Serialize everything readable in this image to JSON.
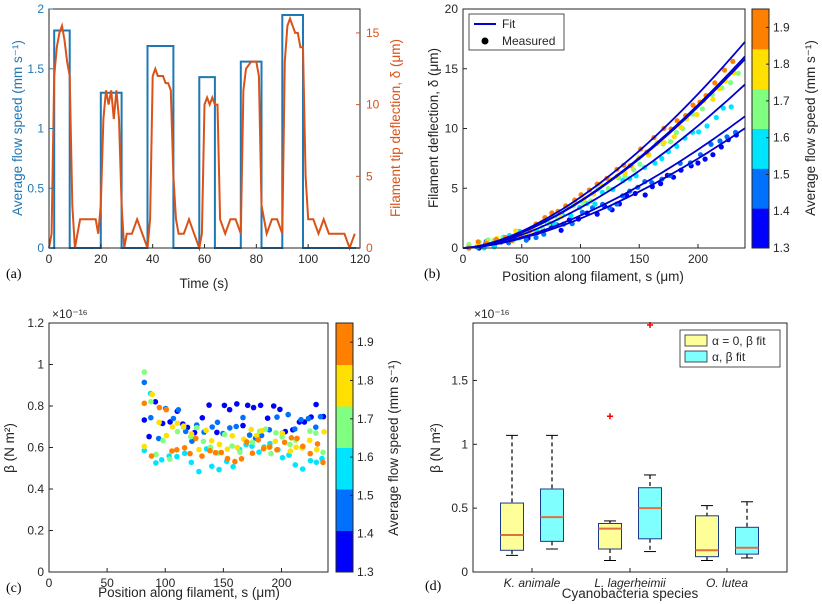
{
  "chart_data": [
    {
      "panel": "(a)",
      "type": "line",
      "xlabel": "Time (s)",
      "ylabel": "Average flow speed (mm s⁻¹)",
      "ylabel_right": "Filament tip deflection, δ (μm)",
      "xlim": [
        0,
        120
      ],
      "ylim": [
        0,
        2
      ],
      "ylim_right": [
        0,
        16.67
      ],
      "x_ticks": [
        "0",
        "20",
        "40",
        "60",
        "80",
        "100",
        "120"
      ],
      "y_ticks": [
        "0",
        "0.5",
        "1",
        "1.5",
        "2"
      ],
      "y_ticks_right": [
        "0",
        "5",
        "10",
        "15"
      ],
      "colors": {
        "flow": "#1f77b4",
        "deflection": "#d95319"
      },
      "series": [
        {
          "name": "flow speed",
          "axis": "left",
          "x": [
            0,
            2,
            2,
            8,
            8,
            20,
            20,
            28,
            28,
            38,
            38,
            48,
            48,
            58,
            58,
            64,
            64,
            74,
            74,
            82,
            82,
            90,
            90,
            98,
            98,
            120
          ],
          "y": [
            0,
            0,
            1.82,
            1.82,
            0,
            0,
            1.3,
            1.3,
            0,
            0,
            1.69,
            1.69,
            0,
            0,
            1.43,
            1.43,
            0,
            0,
            1.56,
            1.56,
            0,
            0,
            1.95,
            1.95,
            0,
            0
          ]
        },
        {
          "name": "tip deflection",
          "axis": "right",
          "x": [
            0,
            1,
            2,
            3,
            4,
            5,
            6,
            7,
            8,
            9,
            10,
            12,
            14,
            16,
            18,
            19,
            20,
            21,
            22,
            23,
            24,
            25,
            26,
            27,
            28,
            29,
            30,
            32,
            34,
            36,
            38,
            39,
            40,
            41,
            42,
            43,
            44,
            45,
            46,
            47,
            48,
            49,
            50,
            52,
            54,
            56,
            58,
            59,
            60,
            61,
            62,
            63,
            64,
            65,
            66,
            68,
            70,
            72,
            74,
            75,
            76,
            78,
            80,
            81,
            82,
            84,
            86,
            88,
            90,
            91,
            92,
            93,
            94,
            95,
            96,
            97,
            98,
            99,
            100,
            102,
            104,
            106,
            108,
            110,
            112,
            114,
            116,
            118
          ],
          "y": [
            0,
            1,
            12,
            14,
            15,
            15.5,
            14.5,
            13,
            12,
            3,
            0,
            2,
            2,
            2,
            2,
            1,
            3,
            9,
            11,
            10,
            11,
            9,
            11,
            9,
            3,
            0,
            1,
            1,
            2,
            1,
            0,
            2,
            12,
            12.5,
            12,
            12,
            12,
            11.5,
            11.5,
            11,
            5,
            2,
            1,
            1,
            2,
            1,
            0,
            1,
            10,
            10.5,
            10,
            10.5,
            10,
            10,
            2,
            1,
            2,
            2,
            1,
            11,
            12.5,
            13,
            13,
            12,
            3,
            1,
            2,
            2,
            1,
            13,
            15.5,
            16,
            15.5,
            15,
            15,
            14,
            14,
            5,
            2,
            2,
            1,
            2,
            1,
            1,
            1,
            1,
            0,
            1
          ]
        }
      ]
    },
    {
      "panel": "(b)",
      "type": "scatter",
      "xlabel": "Position along filament,  s (μm)",
      "ylabel": "Filament deflection, δ (μm)",
      "xlim": [
        0,
        240
      ],
      "ylim": [
        0,
        20
      ],
      "x_ticks": [
        "0",
        "50",
        "100",
        "150",
        "200"
      ],
      "y_ticks": [
        "0",
        "5",
        "10",
        "15",
        "20"
      ],
      "legend": [
        "Fit",
        "Measured"
      ],
      "legend_position": "top-left",
      "colorbar": {
        "label": "Average flow speed (mm s⁻¹)",
        "min": 1.3,
        "max": 1.95,
        "ticks": [
          "1.3",
          "1.4",
          "1.5",
          "1.6",
          "1.7",
          "1.8",
          "1.9"
        ]
      },
      "series": [
        {
          "speed": 1.3,
          "color": "#0000ff",
          "tip": 9.0
        },
        {
          "speed": 1.43,
          "color": "#0070ff",
          "tip": 9.9
        },
        {
          "speed": 1.56,
          "color": "#00e5ff",
          "tip": 12.3
        },
        {
          "speed": 1.69,
          "color": "#80ff80",
          "tip": 14.2
        },
        {
          "speed": 1.82,
          "color": "#ffe000",
          "tip": 14.4
        },
        {
          "speed": 1.95,
          "color": "#ff8000",
          "tip": 15.5
        }
      ]
    },
    {
      "panel": "(c)",
      "type": "scatter",
      "xlabel": "Position along filament,  s (μm)",
      "ylabel": "β (N m²)",
      "exponent": "×10⁻¹⁶",
      "xlim": [
        0,
        240
      ],
      "ylim": [
        0,
        1.2
      ],
      "x_ticks": [
        "0",
        "50",
        "100",
        "150",
        "200"
      ],
      "y_ticks": [
        "0",
        "0.2",
        "0.4",
        "0.6",
        "0.8",
        "1",
        "1.2"
      ],
      "colorbar": {
        "label": "Average flow speed (mm s⁻¹)",
        "min": 1.3,
        "max": 1.95,
        "ticks": [
          "1.3",
          "1.4",
          "1.5",
          "1.6",
          "1.7",
          "1.8",
          "1.9"
        ]
      },
      "series": [
        {
          "speed": 1.3,
          "color": "#0000ff",
          "level": 0.74
        },
        {
          "speed": 1.43,
          "color": "#0070ff",
          "level": 0.7
        },
        {
          "speed": 1.56,
          "color": "#00e5ff",
          "level": 0.55
        },
        {
          "speed": 1.69,
          "color": "#80ff80",
          "level": 0.63
        },
        {
          "speed": 1.82,
          "color": "#ffe000",
          "level": 0.65
        },
        {
          "speed": 1.95,
          "color": "#ff8000",
          "level": 0.59
        }
      ]
    },
    {
      "panel": "(d)",
      "type": "box",
      "xlabel": "Cyanobacteria species",
      "ylabel": "β (N m²)",
      "exponent": "×10⁻¹⁶",
      "ylim": [
        0,
        1.95
      ],
      "y_ticks": [
        "0",
        "0.5",
        "1",
        "1.5"
      ],
      "categories": [
        "K. animale",
        "L. lagerheimii",
        "O. lutea"
      ],
      "legend": [
        "α = 0, β fit",
        "α, β fit"
      ],
      "legend_position": "top-right",
      "colors": {
        "alpha0": "#ffff99",
        "alphafit": "#80ffff",
        "median": "#e07040",
        "outlier": "#ff0000"
      },
      "series": [
        {
          "name": "α = 0, β fit",
          "boxes": [
            {
              "min": 0.13,
              "q1": 0.17,
              "median": 0.29,
              "q3": 0.54,
              "max": 1.07,
              "outliers": []
            },
            {
              "min": 0.09,
              "q1": 0.18,
              "median": 0.34,
              "q3": 0.38,
              "max": 0.4,
              "outliers": [
                1.22
              ]
            },
            {
              "min": 0.09,
              "q1": 0.12,
              "median": 0.17,
              "q3": 0.44,
              "max": 0.52,
              "outliers": []
            }
          ]
        },
        {
          "name": "α, β fit",
          "boxes": [
            {
              "min": 0.18,
              "q1": 0.24,
              "median": 0.43,
              "q3": 0.65,
              "max": 1.07,
              "outliers": []
            },
            {
              "min": 0.16,
              "q1": 0.26,
              "median": 0.5,
              "q3": 0.66,
              "max": 0.76,
              "outliers": [
                1.95
              ]
            },
            {
              "min": 0.11,
              "q1": 0.14,
              "median": 0.19,
              "q3": 0.35,
              "max": 0.55,
              "outliers": []
            }
          ]
        }
      ]
    }
  ]
}
